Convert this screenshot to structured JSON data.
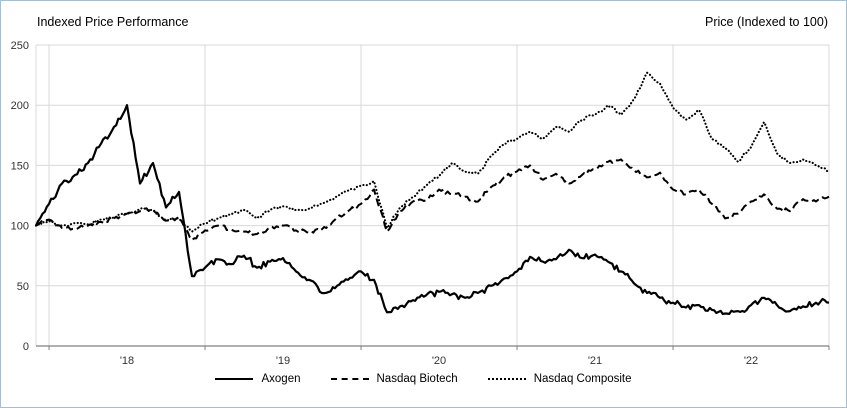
{
  "header": {
    "title_left": "Indexed Price Performance",
    "title_right": "Price (Indexed to 100)"
  },
  "colors": {
    "line": "#000000",
    "grid": "#d9d9d9",
    "axis": "#808080",
    "tick_text": "#333333",
    "border": "#a9bdce"
  },
  "chart_data": {
    "type": "line",
    "title": "Indexed Price Performance",
    "xlabel": "",
    "ylabel": "Price (Indexed to 100)",
    "ylim": [
      0,
      250
    ],
    "y_ticks": [
      0,
      50,
      100,
      150,
      200,
      250
    ],
    "x_tick_labels": [
      "'18",
      "'19",
      "'20",
      "'21",
      "'22"
    ],
    "x_start": "2017-12",
    "x_interval": "monthly",
    "grid": true,
    "legend_position": "bottom",
    "series": [
      {
        "name": "Axogen",
        "style": "solid",
        "values": [
          100,
          118,
          135,
          142,
          152,
          168,
          182,
          200,
          135,
          152,
          115,
          128,
          58,
          65,
          72,
          68,
          75,
          65,
          70,
          73,
          62,
          55,
          44,
          48,
          55,
          62,
          55,
          28,
          33,
          38,
          42,
          45,
          43,
          40,
          44,
          50,
          56,
          62,
          74,
          70,
          72,
          80,
          73,
          76,
          70,
          62,
          52,
          44,
          40,
          36,
          32,
          34,
          30,
          27,
          29,
          34,
          40,
          34,
          29,
          33,
          36,
          36
        ]
      },
      {
        "name": "Nasdaq Biotech",
        "style": "dashed",
        "values": [
          100,
          105,
          98,
          97,
          100,
          103,
          106,
          110,
          112,
          113,
          104,
          107,
          88,
          96,
          100,
          97,
          95,
          93,
          98,
          100,
          96,
          94,
          97,
          105,
          112,
          118,
          130,
          95,
          112,
          120,
          121,
          130,
          126,
          124,
          120,
          132,
          140,
          145,
          150,
          138,
          143,
          135,
          142,
          147,
          153,
          155,
          146,
          140,
          144,
          130,
          126,
          130,
          118,
          106,
          110,
          120,
          126,
          114,
          112,
          122,
          120,
          124
        ]
      },
      {
        "name": "Nasdaq Composite",
        "style": "dotted",
        "values": [
          100,
          104,
          100,
          102,
          101,
          105,
          107,
          110,
          114,
          113,
          104,
          106,
          95,
          102,
          106,
          109,
          113,
          106,
          113,
          116,
          113,
          114,
          118,
          123,
          129,
          133,
          137,
          98,
          115,
          124,
          133,
          141,
          152,
          145,
          143,
          158,
          168,
          172,
          178,
          172,
          182,
          178,
          188,
          192,
          200,
          192,
          205,
          227,
          218,
          198,
          188,
          196,
          172,
          165,
          153,
          165,
          186,
          160,
          152,
          155,
          150,
          145
        ]
      }
    ]
  }
}
